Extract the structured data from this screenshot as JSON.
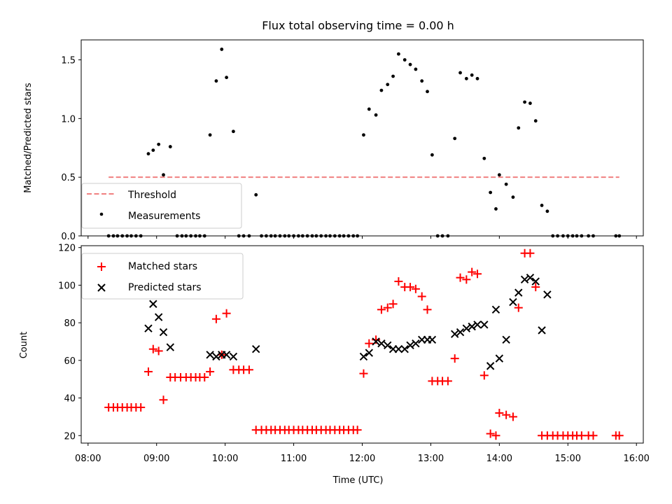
{
  "figure": {
    "title": "Flux total observing time = 0.00 h"
  },
  "chart_data": [
    {
      "type": "scatter",
      "ylabel": "Matched/Predicted stars",
      "xlim": [
        7.9,
        16.1
      ],
      "ylim": [
        0.0,
        1.67
      ],
      "yticks": [
        0.0,
        0.5,
        1.0,
        1.5
      ],
      "ytick_labels": [
        "0.0",
        "0.5",
        "1.0",
        "1.5"
      ],
      "legend": {
        "placement": "lower-left",
        "entries": [
          "Threshold",
          "Measurements"
        ]
      },
      "threshold": {
        "name": "Threshold",
        "value": 0.5,
        "x_range": [
          8.3,
          15.75
        ],
        "color": "#f08080"
      },
      "series": [
        {
          "name": "Measurements",
          "color": "#000000",
          "points": [
            [
              8.3,
              0
            ],
            [
              8.37,
              0
            ],
            [
              8.43,
              0
            ],
            [
              8.5,
              0
            ],
            [
              8.57,
              0
            ],
            [
              8.63,
              0
            ],
            [
              8.7,
              0
            ],
            [
              8.77,
              0
            ],
            [
              8.88,
              0.7
            ],
            [
              8.95,
              0.73
            ],
            [
              9.03,
              0.78
            ],
            [
              9.1,
              0.52
            ],
            [
              9.2,
              0.76
            ],
            [
              9.3,
              0
            ],
            [
              9.37,
              0
            ],
            [
              9.43,
              0
            ],
            [
              9.5,
              0
            ],
            [
              9.57,
              0
            ],
            [
              9.63,
              0
            ],
            [
              9.7,
              0
            ],
            [
              9.78,
              0.86
            ],
            [
              9.87,
              1.32
            ],
            [
              9.95,
              1.59
            ],
            [
              10.02,
              1.35
            ],
            [
              10.12,
              0.89
            ],
            [
              10.2,
              0
            ],
            [
              10.27,
              0
            ],
            [
              10.35,
              0
            ],
            [
              10.45,
              0.35
            ],
            [
              10.53,
              0
            ],
            [
              10.6,
              0
            ],
            [
              10.67,
              0
            ],
            [
              10.73,
              0
            ],
            [
              10.8,
              0
            ],
            [
              10.87,
              0
            ],
            [
              10.93,
              0
            ],
            [
              11.0,
              0
            ],
            [
              11.07,
              0
            ],
            [
              11.13,
              0
            ],
            [
              11.2,
              0
            ],
            [
              11.27,
              0
            ],
            [
              11.33,
              0
            ],
            [
              11.4,
              0
            ],
            [
              11.47,
              0
            ],
            [
              11.53,
              0
            ],
            [
              11.6,
              0
            ],
            [
              11.67,
              0
            ],
            [
              11.73,
              0
            ],
            [
              11.8,
              0
            ],
            [
              11.87,
              0
            ],
            [
              11.93,
              0
            ],
            [
              12.02,
              0.86
            ],
            [
              12.1,
              1.08
            ],
            [
              12.2,
              1.03
            ],
            [
              12.28,
              1.24
            ],
            [
              12.37,
              1.29
            ],
            [
              12.45,
              1.36
            ],
            [
              12.53,
              1.55
            ],
            [
              12.62,
              1.5
            ],
            [
              12.7,
              1.46
            ],
            [
              12.78,
              1.42
            ],
            [
              12.87,
              1.32
            ],
            [
              12.95,
              1.23
            ],
            [
              13.02,
              0.69
            ],
            [
              13.1,
              0
            ],
            [
              13.17,
              0
            ],
            [
              13.25,
              0
            ],
            [
              13.35,
              0.83
            ],
            [
              13.43,
              1.39
            ],
            [
              13.52,
              1.34
            ],
            [
              13.6,
              1.37
            ],
            [
              13.68,
              1.34
            ],
            [
              13.78,
              0.66
            ],
            [
              13.87,
              0.37
            ],
            [
              13.95,
              0.23
            ],
            [
              14.0,
              0.52
            ],
            [
              14.1,
              0.44
            ],
            [
              14.2,
              0.33
            ],
            [
              14.28,
              0.92
            ],
            [
              14.37,
              1.14
            ],
            [
              14.45,
              1.13
            ],
            [
              14.53,
              0.98
            ],
            [
              14.62,
              0.26
            ],
            [
              14.7,
              0.21
            ],
            [
              14.78,
              0
            ],
            [
              14.85,
              0
            ],
            [
              14.93,
              0
            ],
            [
              15.0,
              0
            ],
            [
              15.07,
              0
            ],
            [
              15.13,
              0
            ],
            [
              15.2,
              0
            ],
            [
              15.3,
              0
            ],
            [
              15.37,
              0
            ],
            [
              15.7,
              0
            ],
            [
              15.75,
              0
            ]
          ]
        }
      ]
    },
    {
      "type": "scatter",
      "xlabel": "Time (UTC)",
      "ylabel": "Count",
      "xlim": [
        7.9,
        16.1
      ],
      "ylim": [
        16,
        121
      ],
      "xticks": [
        8,
        9,
        10,
        11,
        12,
        13,
        14,
        15,
        16
      ],
      "xtick_labels": [
        "08:00",
        "09:00",
        "10:00",
        "11:00",
        "12:00",
        "13:00",
        "14:00",
        "15:00",
        "16:00"
      ],
      "yticks": [
        20,
        40,
        60,
        80,
        100,
        120
      ],
      "ytick_labels": [
        "20",
        "40",
        "60",
        "80",
        "100",
        "120"
      ],
      "legend": {
        "placement": "top-left",
        "entries": [
          "Matched stars",
          "Predicted stars"
        ]
      },
      "series": [
        {
          "name": "Matched stars",
          "marker": "plus",
          "color": "#ff0000",
          "points": [
            [
              8.3,
              35
            ],
            [
              8.37,
              35
            ],
            [
              8.43,
              35
            ],
            [
              8.5,
              35
            ],
            [
              8.57,
              35
            ],
            [
              8.63,
              35
            ],
            [
              8.7,
              35
            ],
            [
              8.77,
              35
            ],
            [
              8.88,
              54
            ],
            [
              8.95,
              66
            ],
            [
              9.03,
              65
            ],
            [
              9.1,
              39
            ],
            [
              9.2,
              51
            ],
            [
              9.27,
              51
            ],
            [
              9.35,
              51
            ],
            [
              9.43,
              51
            ],
            [
              9.5,
              51
            ],
            [
              9.57,
              51
            ],
            [
              9.63,
              51
            ],
            [
              9.7,
              51
            ],
            [
              9.78,
              54
            ],
            [
              9.87,
              82
            ],
            [
              9.95,
              63
            ],
            [
              10.02,
              85
            ],
            [
              10.12,
              55
            ],
            [
              10.2,
              55
            ],
            [
              10.27,
              55
            ],
            [
              10.35,
              55
            ],
            [
              10.45,
              23
            ],
            [
              10.53,
              23
            ],
            [
              10.6,
              23
            ],
            [
              10.67,
              23
            ],
            [
              10.73,
              23
            ],
            [
              10.8,
              23
            ],
            [
              10.87,
              23
            ],
            [
              10.93,
              23
            ],
            [
              11.0,
              23
            ],
            [
              11.07,
              23
            ],
            [
              11.13,
              23
            ],
            [
              11.2,
              23
            ],
            [
              11.27,
              23
            ],
            [
              11.33,
              23
            ],
            [
              11.4,
              23
            ],
            [
              11.47,
              23
            ],
            [
              11.53,
              23
            ],
            [
              11.6,
              23
            ],
            [
              11.67,
              23
            ],
            [
              11.73,
              23
            ],
            [
              11.8,
              23
            ],
            [
              11.87,
              23
            ],
            [
              11.93,
              23
            ],
            [
              12.02,
              53
            ],
            [
              12.1,
              69
            ],
            [
              12.2,
              71
            ],
            [
              12.28,
              87
            ],
            [
              12.37,
              88
            ],
            [
              12.45,
              90
            ],
            [
              12.53,
              102
            ],
            [
              12.62,
              99
            ],
            [
              12.7,
              99
            ],
            [
              12.78,
              98
            ],
            [
              12.87,
              94
            ],
            [
              12.95,
              87
            ],
            [
              13.02,
              49
            ],
            [
              13.1,
              49
            ],
            [
              13.17,
              49
            ],
            [
              13.25,
              49
            ],
            [
              13.35,
              61
            ],
            [
              13.43,
              104
            ],
            [
              13.52,
              103
            ],
            [
              13.6,
              107
            ],
            [
              13.68,
              106
            ],
            [
              13.78,
              52
            ],
            [
              13.87,
              21
            ],
            [
              13.95,
              20
            ],
            [
              14.0,
              32
            ],
            [
              14.1,
              31
            ],
            [
              14.2,
              30
            ],
            [
              14.28,
              88
            ],
            [
              14.37,
              117
            ],
            [
              14.45,
              117
            ],
            [
              14.53,
              99
            ],
            [
              14.62,
              20
            ],
            [
              14.7,
              20
            ],
            [
              14.78,
              20
            ],
            [
              14.85,
              20
            ],
            [
              14.93,
              20
            ],
            [
              15.0,
              20
            ],
            [
              15.07,
              20
            ],
            [
              15.13,
              20
            ],
            [
              15.2,
              20
            ],
            [
              15.3,
              20
            ],
            [
              15.37,
              20
            ],
            [
              15.7,
              20
            ],
            [
              15.75,
              20
            ]
          ]
        },
        {
          "name": "Predicted stars",
          "marker": "x",
          "color": "#000000",
          "points": [
            [
              8.88,
              77
            ],
            [
              8.95,
              90
            ],
            [
              9.03,
              83
            ],
            [
              9.1,
              75
            ],
            [
              9.2,
              67
            ],
            [
              9.78,
              63
            ],
            [
              9.87,
              62
            ],
            [
              9.95,
              63
            ],
            [
              10.02,
              63
            ],
            [
              10.12,
              62
            ],
            [
              10.45,
              66
            ],
            [
              12.02,
              62
            ],
            [
              12.1,
              64
            ],
            [
              12.2,
              70
            ],
            [
              12.28,
              69
            ],
            [
              12.37,
              68
            ],
            [
              12.45,
              66
            ],
            [
              12.53,
              66
            ],
            [
              12.62,
              66
            ],
            [
              12.7,
              68
            ],
            [
              12.78,
              69
            ],
            [
              12.87,
              71
            ],
            [
              12.95,
              71
            ],
            [
              13.02,
              71
            ],
            [
              13.35,
              74
            ],
            [
              13.43,
              75
            ],
            [
              13.52,
              77
            ],
            [
              13.6,
              78
            ],
            [
              13.68,
              79
            ],
            [
              13.78,
              79
            ],
            [
              13.87,
              57
            ],
            [
              13.95,
              87
            ],
            [
              14.0,
              61
            ],
            [
              14.1,
              71
            ],
            [
              14.2,
              91
            ],
            [
              14.28,
              96
            ],
            [
              14.37,
              103
            ],
            [
              14.45,
              104
            ],
            [
              14.53,
              102
            ],
            [
              14.62,
              76
            ],
            [
              14.7,
              95
            ]
          ]
        }
      ]
    }
  ]
}
